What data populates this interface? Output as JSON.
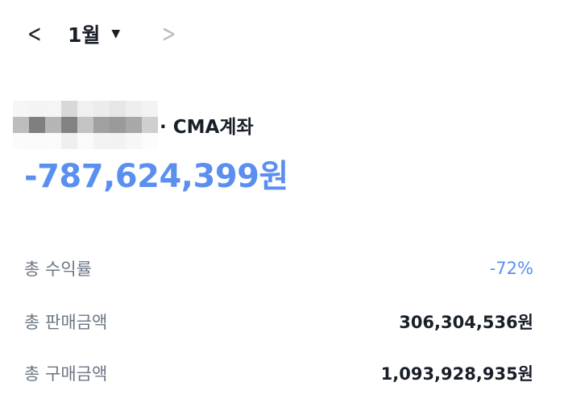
{
  "nav": {
    "prev_icon": "chevron-left-icon",
    "month": "1월",
    "dropdown_icon": "caret-down-icon",
    "next_icon": "chevron-right-icon"
  },
  "account": {
    "name_suffix": "· CMA계좌",
    "name_blurred": true
  },
  "total_profit": "-787,624,399원",
  "colors": {
    "accent": "#5a8ff0"
  },
  "summary": [
    {
      "label": "총 수익률",
      "value": "-72%"
    },
    {
      "label": "총 판매금액",
      "value": "306,304,536원"
    },
    {
      "label": "총 구매금액",
      "value": "1,093,928,935원"
    }
  ]
}
